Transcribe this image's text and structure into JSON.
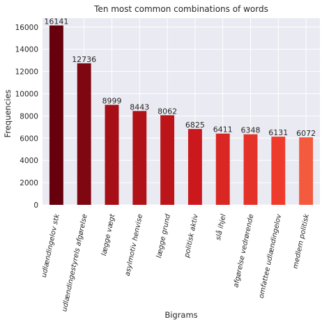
{
  "chart_data": {
    "type": "bar",
    "title": "Ten most common combinations of words",
    "xlabel": "Bigrams",
    "ylabel": "Frequencies",
    "ylim": [
      0,
      16800
    ],
    "yticks": [
      0,
      2000,
      4000,
      6000,
      8000,
      10000,
      12000,
      14000,
      16000
    ],
    "grid": true,
    "categories": [
      "udlændingelov stk",
      "udlændingestyrels afgørelse",
      "lægge vægt",
      "asylmotiv henvise",
      "lægge grund",
      "politisk aktiv",
      "slå ihjel",
      "afgørelse vedrørende",
      "omfattee udlændingelov",
      "medlem politisk"
    ],
    "values": [
      16141,
      12736,
      8999,
      8443,
      8062,
      6825,
      6411,
      6348,
      6131,
      6072
    ],
    "bar_colors": [
      "#67000d",
      "#7f0711",
      "#a50f15",
      "#b01217",
      "#bb151a",
      "#cb181d",
      "#d92723",
      "#e53228",
      "#ef3b2c",
      "#f45a3e"
    ],
    "plot_background": "#eaeaf2",
    "grid_color": "#ffffff"
  }
}
